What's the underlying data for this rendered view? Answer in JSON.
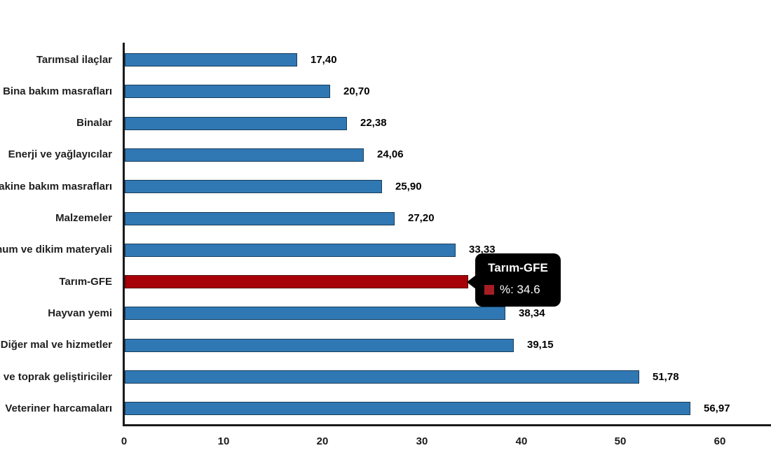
{
  "chart_data": {
    "type": "bar",
    "orientation": "horizontal",
    "categories": [
      "Tarımsal ilaçlar",
      "Bina bakım masrafları",
      "Binalar",
      "Enerji  ve yağlayıcılar",
      "Makine bakım masrafları",
      "Malzemeler",
      "Tohum ve dikim materyali",
      "Tarım-GFE",
      "Hayvan yemi",
      "Diğer mal ve hizmetler",
      "Gübre ve toprak geliştiriciler",
      "Veteriner harcamaları"
    ],
    "values": [
      17.4,
      20.7,
      22.38,
      24.06,
      25.9,
      27.2,
      33.33,
      34.6,
      38.34,
      39.15,
      51.78,
      56.97
    ],
    "value_labels": [
      "17,40",
      "20,70",
      "22,38",
      "24,06",
      "25,90",
      "27,20",
      "33,33",
      "",
      "38,34",
      "39,15",
      "51,78",
      "56,97"
    ],
    "highlight_index": 7,
    "bar_color": "#3078B4",
    "highlight_color": "#A80009",
    "axis_color": "#1a1a1a",
    "xlim": [
      0,
      60
    ],
    "x_tick_labels": [
      "0",
      "10",
      "20",
      "30",
      "40",
      "50",
      "60"
    ],
    "x_tick_values": [
      0,
      10,
      20,
      30,
      40,
      50,
      60
    ],
    "grid": false,
    "legend": false,
    "title": "",
    "xlabel": "",
    "ylabel": ""
  },
  "tooltip": {
    "title": "Tarım-GFE",
    "value_label": "%: 34.6",
    "swatch_color": "#A61E24",
    "background_color": "#000000",
    "text_color": "#ffffff"
  }
}
